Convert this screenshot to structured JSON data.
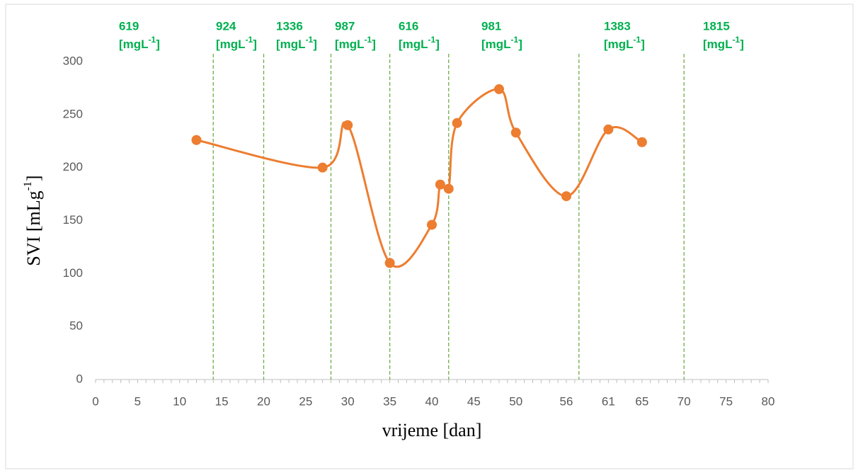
{
  "chart_data": {
    "type": "line",
    "x_label": "vrijeme [dan]",
    "y_label": "SVI [mLg",
    "y_label_sup": "-1",
    "y_label_close": "]",
    "x": [
      12,
      27,
      30,
      35,
      40,
      41,
      42,
      43,
      48,
      50,
      56,
      61,
      65
    ],
    "series": [
      {
        "name": "SVI",
        "color": "#ed7d31",
        "values": [
          226,
          200,
          240,
          110,
          146,
          184,
          180,
          242,
          274,
          233,
          173,
          236,
          224
        ]
      }
    ],
    "xlim": [
      0,
      80
    ],
    "xticks": [
      0,
      5,
      10,
      15,
      20,
      25,
      30,
      35,
      40,
      45,
      50,
      56,
      61,
      65,
      70,
      75,
      80
    ],
    "ylim": [
      0,
      300
    ],
    "yticks": [
      0,
      50,
      100,
      150,
      200,
      250,
      300
    ],
    "vlines": {
      "x": [
        14,
        20,
        28,
        35,
        42,
        57.5,
        70
      ],
      "color": "#70ad47"
    },
    "annotations": [
      "619",
      "924",
      "1336",
      "987",
      "616",
      "981",
      "1383",
      "1815"
    ],
    "annotation_unit": "[mgL",
    "annotation_unit_sup": "-1",
    "annotation_unit_close": "]"
  }
}
